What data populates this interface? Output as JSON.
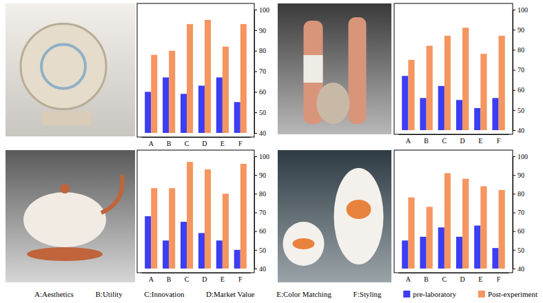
{
  "chart_data": [
    {
      "type": "bar",
      "categories": [
        "A",
        "B",
        "C",
        "D",
        "E",
        "F"
      ],
      "series": [
        {
          "name": "pre-laboratory",
          "color": "#3d3df2",
          "values": [
            60,
            67,
            59,
            63,
            67,
            55
          ]
        },
        {
          "name": "Post-experiment",
          "color": "#f5955f",
          "values": [
            78,
            80,
            93,
            95,
            82,
            93
          ]
        }
      ],
      "ylim": [
        40,
        100
      ],
      "yticks": [
        40,
        50,
        60,
        70,
        80,
        90,
        100
      ],
      "legend": "bottom"
    },
    {
      "type": "bar",
      "categories": [
        "A",
        "B",
        "C",
        "D",
        "E",
        "F"
      ],
      "series": [
        {
          "color": "#3d3df2",
          "values": [
            67,
            56,
            62,
            55,
            51,
            56
          ]
        },
        {
          "color": "#f5955f",
          "values": [
            75,
            82,
            87,
            91,
            78,
            87
          ]
        }
      ],
      "ylim": [
        40,
        100
      ],
      "yticks": [
        40,
        50,
        60,
        70,
        80,
        90,
        100
      ]
    },
    {
      "type": "bar",
      "categories": [
        "A",
        "B",
        "C",
        "D",
        "E",
        "F"
      ],
      "series": [
        {
          "color": "#3d3df2",
          "values": [
            68,
            55,
            65,
            59,
            55,
            50
          ]
        },
        {
          "color": "#f5955f",
          "values": [
            83,
            83,
            97,
            93,
            80,
            96
          ]
        }
      ],
      "ylim": [
        40,
        100
      ],
      "yticks": [
        40,
        50,
        60,
        70,
        80,
        90,
        100
      ]
    },
    {
      "type": "bar",
      "categories": [
        "A",
        "B",
        "C",
        "D",
        "E",
        "F"
      ],
      "series": [
        {
          "color": "#3d3df2",
          "values": [
            55,
            57,
            62,
            57,
            63,
            51
          ]
        },
        {
          "color": "#f5955f",
          "values": [
            78,
            73,
            91,
            88,
            84,
            82
          ]
        }
      ],
      "ylim": [
        40,
        100
      ],
      "yticks": [
        40,
        50,
        60,
        70,
        80,
        90,
        100
      ]
    }
  ],
  "footer": {
    "key": [
      "A:Aesthetics",
      "B:Utility",
      "C:Innovation",
      "D:Market Value",
      "E:Color Matching",
      "F:Styling"
    ]
  }
}
